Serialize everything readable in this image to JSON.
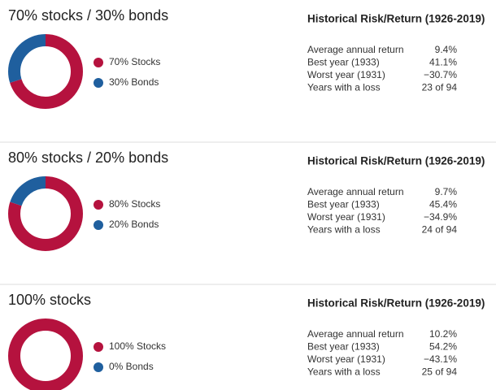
{
  "chart_data": [
    {
      "type": "pie",
      "title": "70% stocks / 30% bonds",
      "categories": [
        "70% Stocks",
        "30% Bonds"
      ],
      "values": [
        70,
        30
      ],
      "colors": [
        "#b5123e",
        "#1f5f9e"
      ],
      "stats_title": "Historical Risk/Return (1926-2019)",
      "stats": [
        [
          "Average annual return",
          "9.4%"
        ],
        [
          "Best year (1933)",
          "41.1%"
        ],
        [
          "Worst year (1931)",
          "−30.7%"
        ],
        [
          "Years with a loss",
          "23 of 94"
        ]
      ]
    },
    {
      "type": "pie",
      "title": "80% stocks / 20% bonds",
      "categories": [
        "80% Stocks",
        "20% Bonds"
      ],
      "values": [
        80,
        20
      ],
      "colors": [
        "#b5123e",
        "#1f5f9e"
      ],
      "stats_title": "Historical Risk/Return (1926-2019)",
      "stats": [
        [
          "Average annual return",
          "9.7%"
        ],
        [
          "Best year (1933)",
          "45.4%"
        ],
        [
          "Worst year (1931)",
          "−34.9%"
        ],
        [
          "Years with a loss",
          "24 of 94"
        ]
      ]
    },
    {
      "type": "pie",
      "title": "100% stocks",
      "categories": [
        "100% Stocks",
        "0% Bonds"
      ],
      "values": [
        100,
        0
      ],
      "colors": [
        "#b5123e",
        "#1f5f9e"
      ],
      "stats_title": "Historical Risk/Return (1926-2019)",
      "stats": [
        [
          "Average annual return",
          "10.2%"
        ],
        [
          "Best year (1933)",
          "54.2%"
        ],
        [
          "Worst year (1931)",
          "−43.1%"
        ],
        [
          "Years with a loss",
          "25 of 94"
        ]
      ]
    }
  ]
}
